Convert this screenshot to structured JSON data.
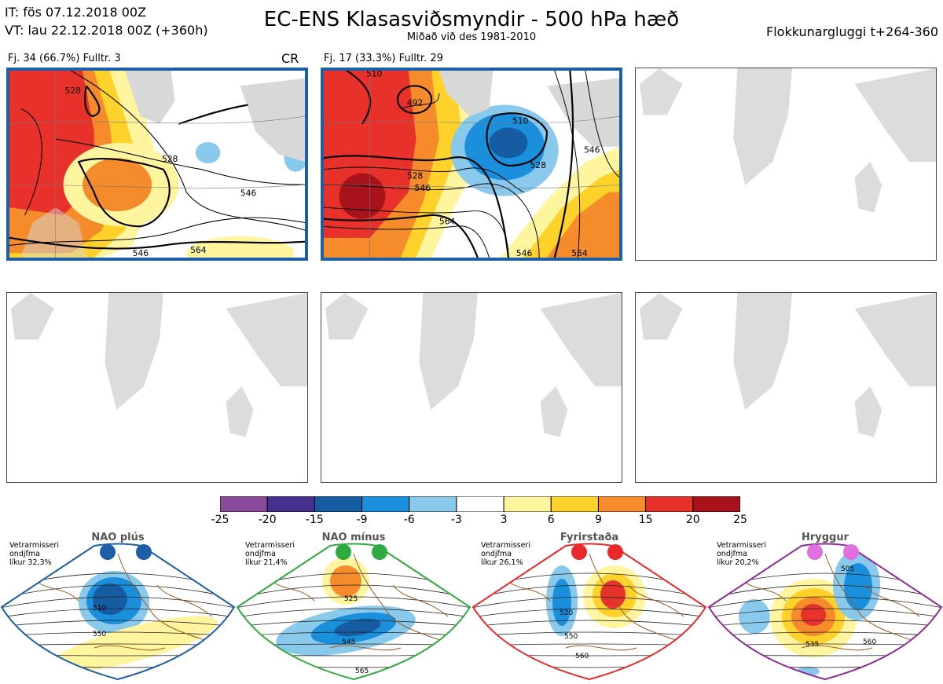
{
  "header": {
    "it_line": "IT: fös 07.12.2018 00Z",
    "vt_line": "VT: lau 22.12.2018 00Z  (+360h)",
    "title": "EC-ENS Klasasviðsmyndir - 500 hPa hæð",
    "subtitle": "Miðað við des 1981-2010",
    "window": "Flokkunargluggi t+264-360"
  },
  "panels": [
    {
      "label": "Fj. 34 (66.7%)   Fulltr. 3",
      "badge": "CR",
      "contours": [
        "528",
        "528",
        "546",
        "546",
        "564"
      ]
    },
    {
      "label": "Fj. 17 (33.3%)   Fulltr. 29",
      "badge": "",
      "contours": [
        "510",
        "492",
        "510",
        "528",
        "528",
        "546",
        "546",
        "564",
        "546",
        "564"
      ]
    }
  ],
  "colorbar": {
    "ticks": [
      "-25",
      "-20",
      "-15",
      "-9",
      "-6",
      "-3",
      "3",
      "6",
      "9",
      "15",
      "20",
      "25"
    ],
    "colors": [
      "#8a4a9c",
      "#452f8f",
      "#165ca3",
      "#1a8fdb",
      "#89c9ec",
      "#ffffff",
      "#fff59e",
      "#fed22a",
      "#f58b2b",
      "#e8312a",
      "#a8121b"
    ]
  },
  "chart_data": {
    "type": "heatmap",
    "title": "EC-ENS Klasasviðsmyndir - 500 hPa hæð",
    "color_scale": {
      "bounds": [
        -25,
        -20,
        -15,
        -9,
        -6,
        -3,
        3,
        6,
        9,
        15,
        20,
        25
      ]
    },
    "clusters": [
      {
        "members": 34,
        "percent": 66.7,
        "representative": 3
      },
      {
        "members": 17,
        "percent": 33.3,
        "representative": 29
      }
    ]
  },
  "regimes": [
    {
      "name": "NAO plús",
      "note": "Vetrarmisseri\nondjfma\nlíkur 32,3%",
      "color": "#1d5fa6",
      "contours": [
        "510",
        "550"
      ]
    },
    {
      "name": "NAO mínus",
      "note": "Vetrarmisseri\nondjfma\nlíkur 21,4%",
      "color": "#2eaa3e",
      "contours": [
        "525",
        "545",
        "565"
      ]
    },
    {
      "name": "Fyrirstaða",
      "note": "Vetrarmisseri\nondjfma\nlíkur 26,1%",
      "color": "#e8282a",
      "contours": [
        "520",
        "550",
        "560"
      ]
    },
    {
      "name": "Hryggur",
      "note": "Vetrarmisseri\nondjfma\nlíkur 20,2%",
      "color": "#8e2b92",
      "contours": [
        "505",
        "535",
        "560"
      ]
    }
  ]
}
